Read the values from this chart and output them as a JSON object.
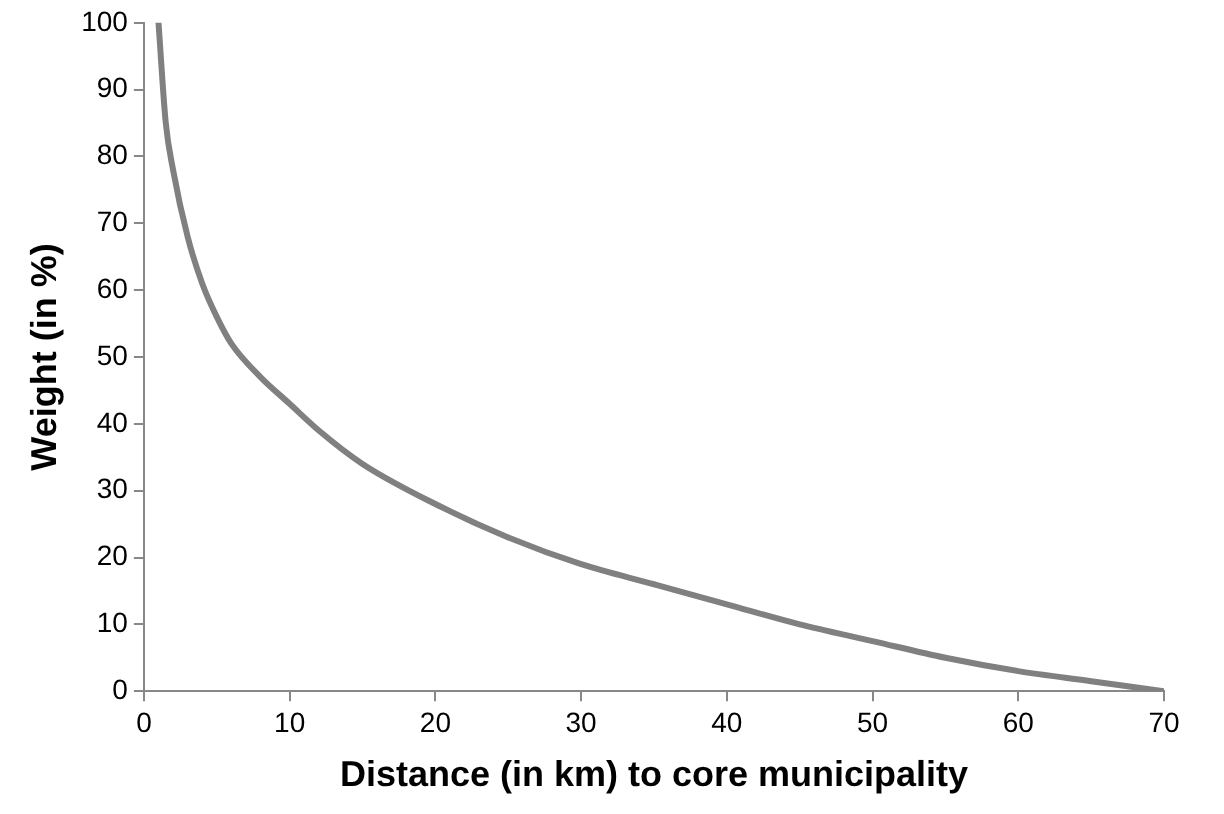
{
  "chart_data": {
    "type": "line",
    "xlabel": "Distance (in km) to core municipality",
    "ylabel": "Weight (in %)",
    "x": [
      1,
      1.5,
      2,
      3,
      4,
      5,
      6,
      8,
      10,
      12,
      15,
      20,
      25,
      30,
      35,
      40,
      45,
      50,
      55,
      60,
      65,
      70
    ],
    "series": [
      {
        "color": "#808080",
        "values": [
          100,
          85,
          78,
          68,
          61,
          56,
          52,
          47,
          43,
          39,
          34,
          28,
          23,
          19,
          16,
          13,
          10,
          7.5,
          5,
          3,
          1.5,
          0
        ]
      }
    ],
    "xlim": [
      0,
      70
    ],
    "xticks": [
      0,
      10,
      20,
      30,
      40,
      50,
      60,
      70
    ],
    "ylim": [
      0,
      100
    ],
    "yticks": [
      0,
      10,
      20,
      30,
      40,
      50,
      60,
      70,
      80,
      90,
      100
    ],
    "grid": false,
    "legend": false,
    "marker": "none",
    "line_style": "solid"
  }
}
